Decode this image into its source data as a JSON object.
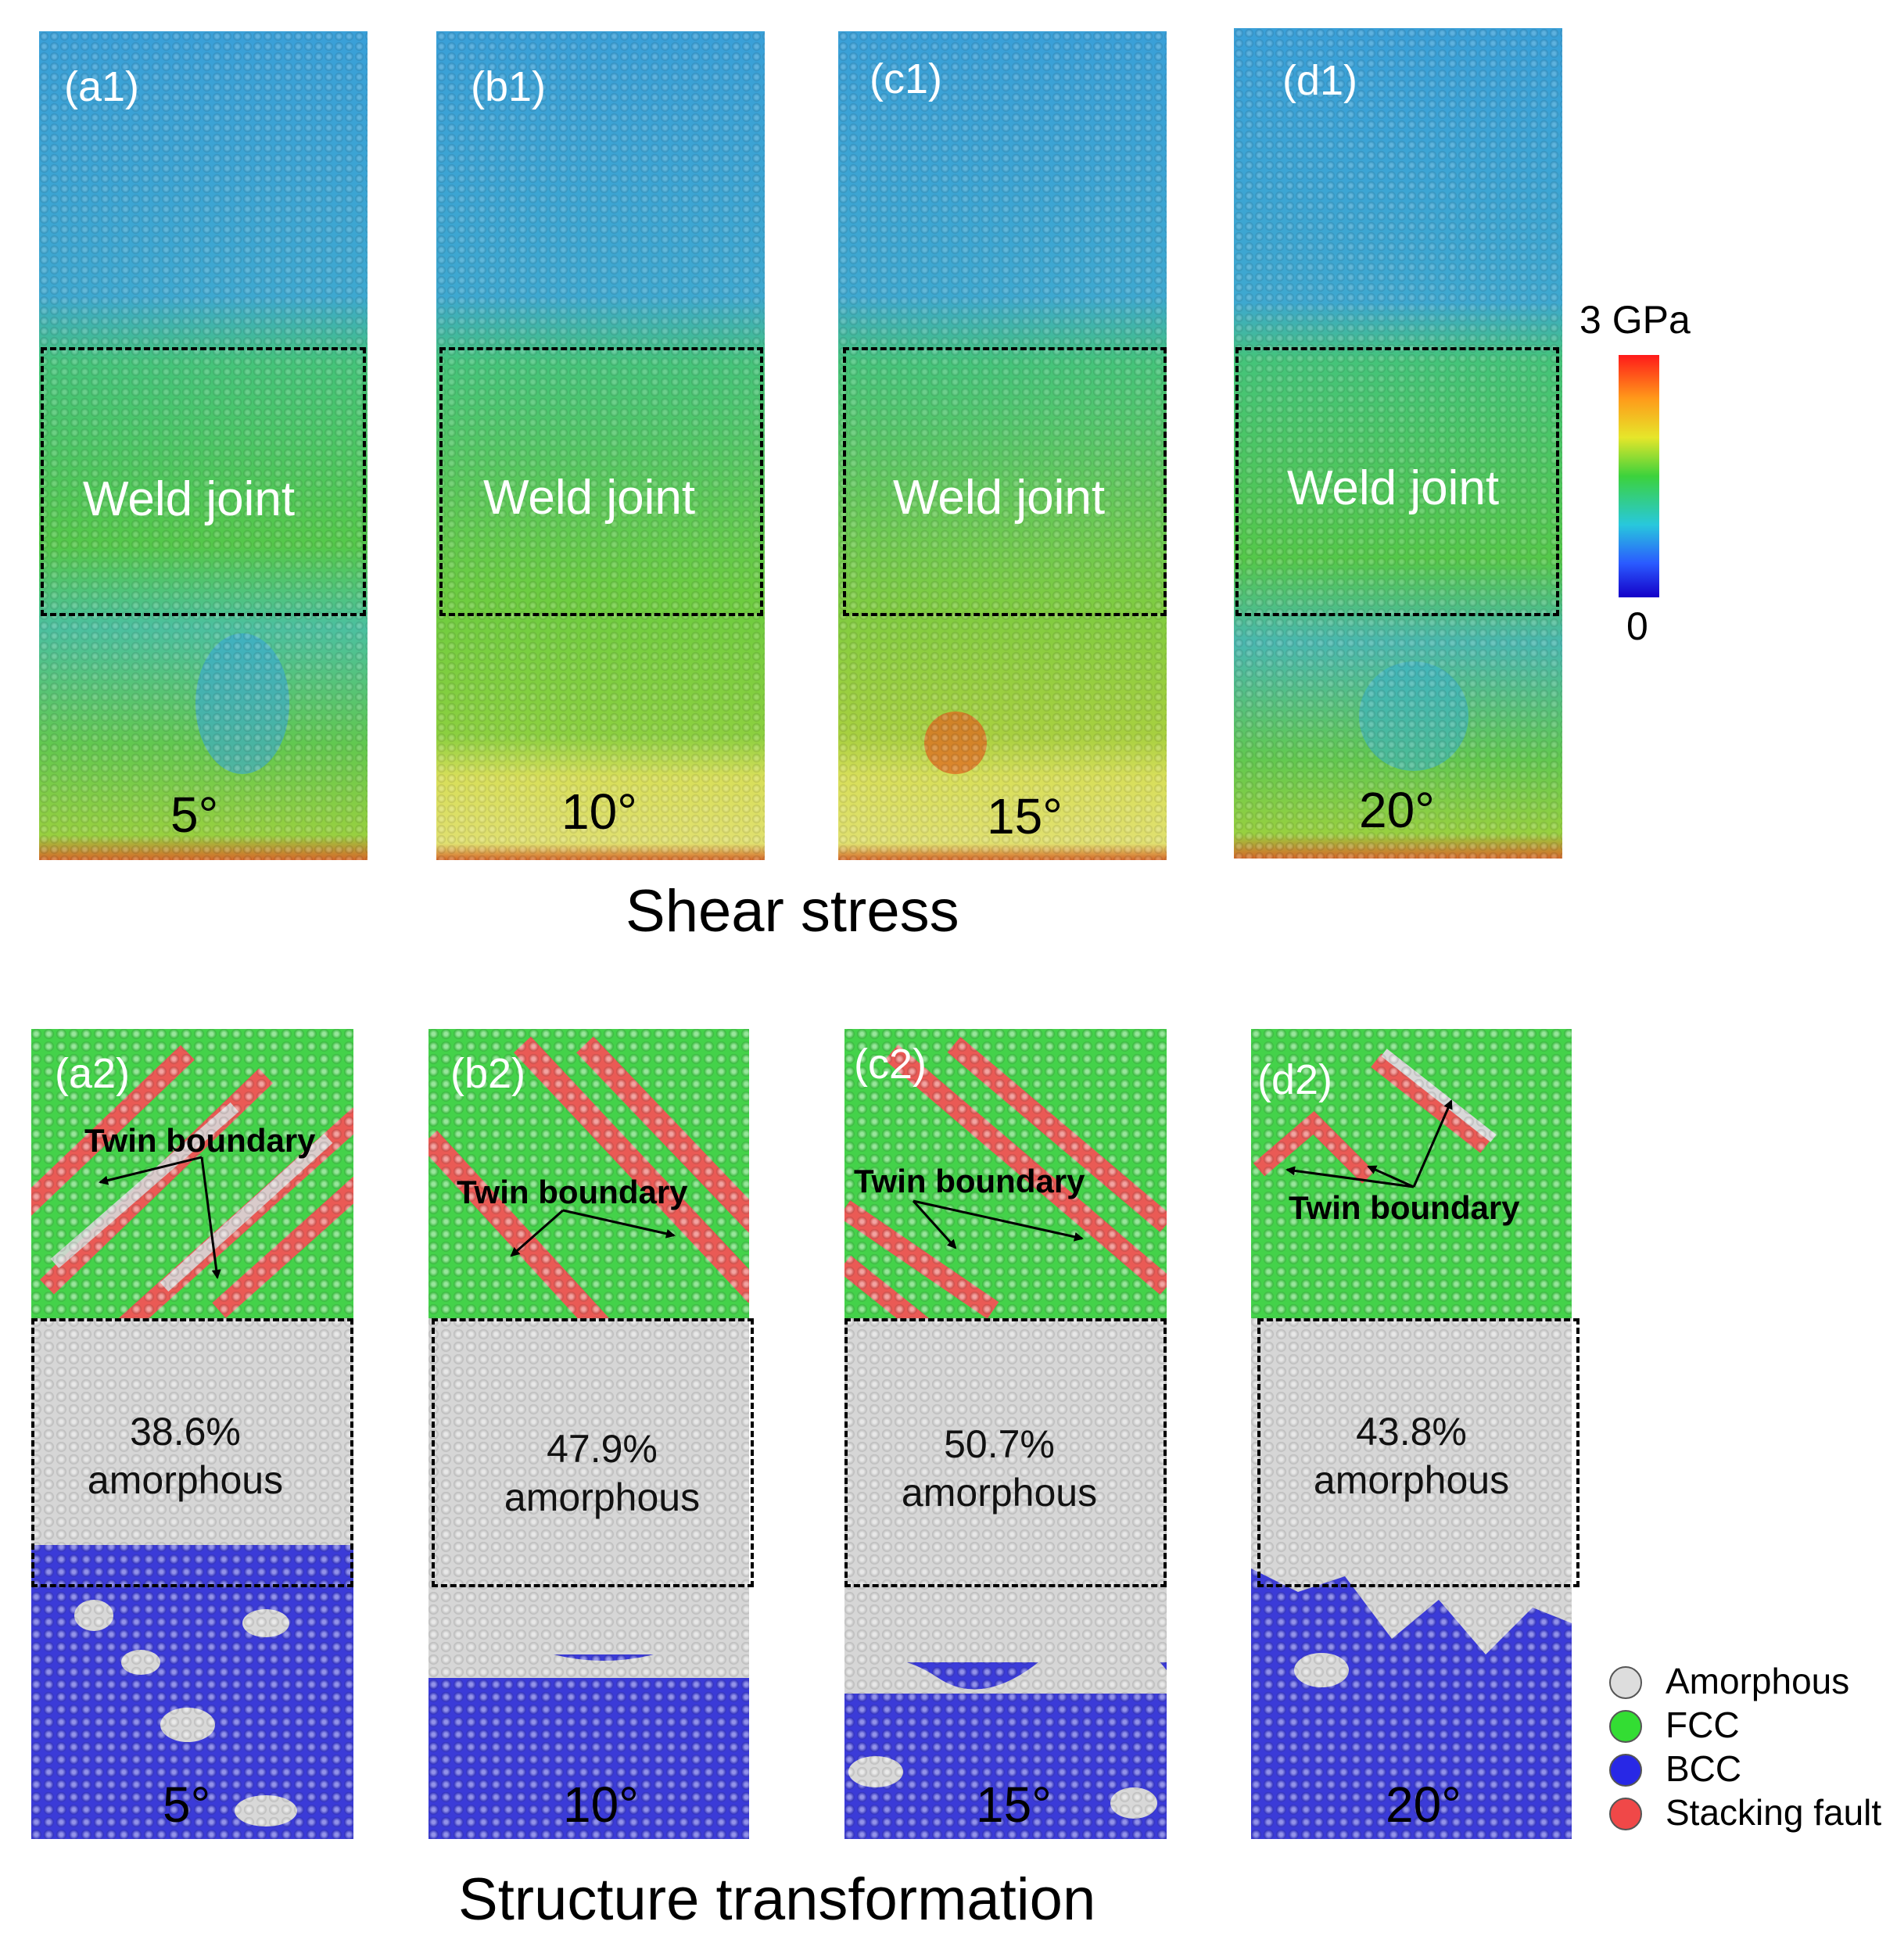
{
  "colorbar": {
    "max_label": "3 GPa",
    "min_label": "0",
    "colors": [
      "#ff1a1a",
      "#ff9a1a",
      "#e6e62a",
      "#3cd23c",
      "#28c8dc",
      "#2a5aff",
      "#1400c8"
    ]
  },
  "stress_panels": [
    {
      "label": "(a1)",
      "weld": "Weld joint",
      "angle": "5°"
    },
    {
      "label": "(b1)",
      "weld": "Weld joint",
      "angle": "10°"
    },
    {
      "label": "(c1)",
      "weld": "Weld joint",
      "angle": "15°"
    },
    {
      "label": "(d1)",
      "weld": "Weld joint",
      "angle": "20°"
    }
  ],
  "stress_caption": "Shear stress",
  "structure_panels": [
    {
      "label": "(a2)",
      "amorphous_pct": "38.6%",
      "amorphous_word": "amorphous",
      "twin": "Twin boundary",
      "angle": "5°"
    },
    {
      "label": "(b2)",
      "amorphous_pct": "47.9%",
      "amorphous_word": "amorphous",
      "twin": "Twin boundary",
      "angle": "10°"
    },
    {
      "label": "(c2)",
      "amorphous_pct": "50.7%",
      "amorphous_word": "amorphous",
      "twin": "Twin boundary",
      "angle": "15°"
    },
    {
      "label": "(d2)",
      "amorphous_pct": "43.8%",
      "amorphous_word": "amorphous",
      "twin": "Twin boundary",
      "angle": "20°"
    }
  ],
  "structure_caption": "Structure transformation",
  "legend": [
    {
      "name": "Amorphous",
      "color": "#dddddd"
    },
    {
      "name": "FCC",
      "color": "#33dd33"
    },
    {
      "name": "BCC",
      "color": "#2828e6"
    },
    {
      "name": "Stacking fault",
      "color": "#f04848"
    }
  ]
}
